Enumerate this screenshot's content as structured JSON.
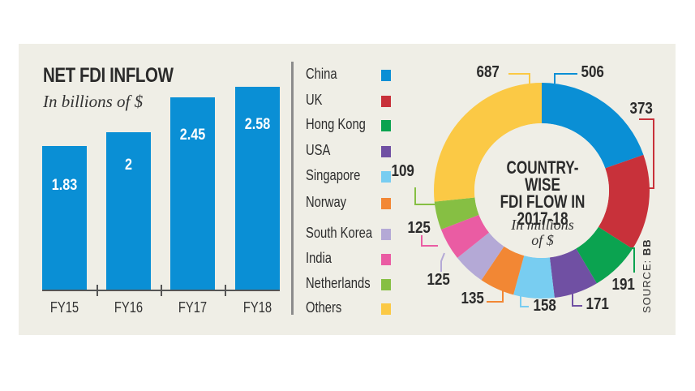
{
  "left_chart": {
    "title": "NET FDI INFLOW",
    "subtitle": "In billions of $"
  },
  "donut": {
    "title_line1": "COUNTRY-WISE",
    "title_line2": "FDI FLOW IN",
    "title_line3": "2017-18",
    "subtitle_line1": "In millions",
    "subtitle_line2": "of $"
  },
  "source": {
    "label": "SOURCE:",
    "value": "BB"
  },
  "legend": [
    {
      "label": "China",
      "color": "#0a8fd5"
    },
    {
      "label": "UK",
      "color": "#c8313a"
    },
    {
      "label": "Hong Kong",
      "color": "#0ba350"
    },
    {
      "label": "USA",
      "color": "#7050a3"
    },
    {
      "label": "Singapore",
      "color": "#78cdf1"
    },
    {
      "label": "Norway",
      "color": "#f28734"
    },
    {
      "label": "South Korea",
      "color": "#b4a9d6"
    },
    {
      "label": "India",
      "color": "#ea5ca3"
    },
    {
      "label": "Netherlands",
      "color": "#86bf43"
    },
    {
      "label": "Others",
      "color": "#fbc945"
    }
  ],
  "chart_data": [
    {
      "type": "bar",
      "title": "NET FDI INFLOW",
      "subtitle": "In billions of $",
      "categories": [
        "FY15",
        "FY16",
        "FY17",
        "FY18"
      ],
      "values": [
        1.83,
        2,
        2.45,
        2.58
      ],
      "value_labels": [
        "1.83",
        "2",
        "2.45",
        "2.58"
      ],
      "xlabel": "",
      "ylabel": "In billions of $",
      "color": "#0a8fd5",
      "grid": false
    },
    {
      "type": "pie",
      "donut": true,
      "title": "COUNTRY-WISE FDI FLOW IN 2017-18",
      "subtitle": "In millions of $",
      "categories": [
        "China",
        "UK",
        "Hong Kong",
        "USA",
        "Singapore",
        "Norway",
        "South Korea",
        "India",
        "Netherlands",
        "Others"
      ],
      "values": [
        506,
        373,
        191,
        171,
        158,
        135,
        125,
        125,
        109,
        687
      ],
      "colors": [
        "#0a8fd5",
        "#c8313a",
        "#0ba350",
        "#7050a3",
        "#78cdf1",
        "#f28734",
        "#b4a9d6",
        "#ea5ca3",
        "#86bf43",
        "#fbc945"
      ],
      "legend_position": "left",
      "source": "SOURCE: BB"
    }
  ]
}
